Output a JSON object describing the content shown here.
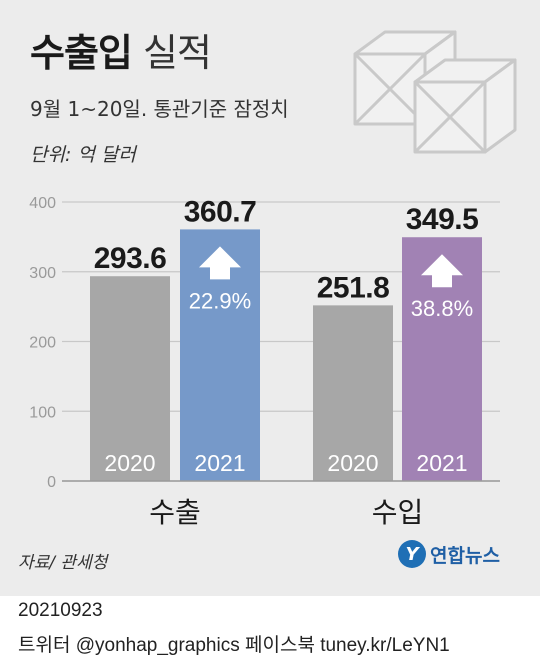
{
  "header": {
    "title_bold": "수출입",
    "title_light": "실적",
    "subtitle": "9월 1~20일. 통관기준 잠정치",
    "unit": "단위: 억 달러"
  },
  "colors": {
    "gray_bar": "#a7a7a7",
    "blue_bar": "#7699c9",
    "purple_bar": "#a182b4",
    "background": "#ececec"
  },
  "icons": {
    "header_art": "stacked-crates-icon",
    "growth": "up-arrow-icon"
  },
  "chart_data": {
    "type": "bar",
    "categories": [
      "수출",
      "수입"
    ],
    "series": [
      {
        "name": "2020",
        "values": [
          293.6,
          251.8
        ]
      },
      {
        "name": "2021",
        "values": [
          360.7,
          349.5
        ]
      }
    ],
    "growth_labels": [
      "22.9%",
      "38.8%"
    ],
    "value_labels": {
      "2020": [
        "293.6",
        "251.8"
      ],
      "2021": [
        "360.7",
        "349.5"
      ]
    },
    "ylim": [
      0,
      400
    ],
    "yticks": [
      "0",
      "100",
      "200",
      "300",
      "400"
    ],
    "grid": true
  },
  "footer": {
    "source": "자료/ 관세청",
    "brand": "연합뉴스",
    "brand_mark": "Y",
    "date": "20210923",
    "credit": "트위터 @yonhap_graphics  페이스북 tuney.kr/LeYN1"
  }
}
